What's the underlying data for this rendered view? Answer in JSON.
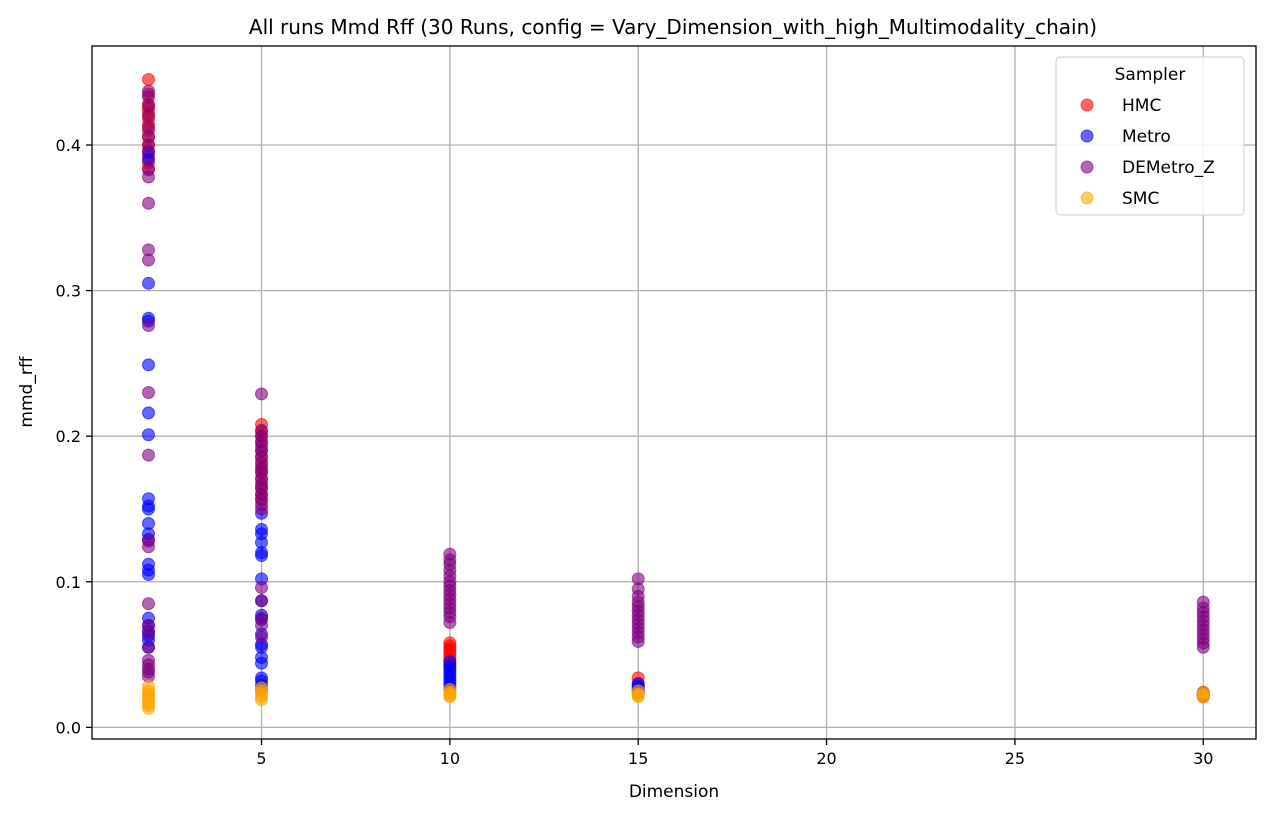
{
  "chart_data": {
    "type": "scatter",
    "title": "All runs Mmd Rff (30 Runs, config = Vary_Dimension_with_high_Multimodality_chain)",
    "xlabel": "Dimension",
    "ylabel": "mmd_rff",
    "xlim": [
      0.5,
      31.4
    ],
    "ylim": [
      -0.008,
      0.468
    ],
    "xticks": [
      5,
      10,
      15,
      20,
      25,
      30
    ],
    "yticks": [
      0.0,
      0.1,
      0.2,
      0.3,
      0.4
    ],
    "xtick_labels": [
      "5",
      "10",
      "15",
      "20",
      "25",
      "30"
    ],
    "ytick_labels": [
      "0.0",
      "0.1",
      "0.2",
      "0.3",
      "0.4"
    ],
    "grid": true,
    "legend": {
      "title": "Sampler",
      "position": "top-right"
    },
    "series": [
      {
        "name": "HMC",
        "color": "#ff0000",
        "points": [
          [
            2,
            0.445
          ],
          [
            2,
            0.435
          ],
          [
            2,
            0.428
          ],
          [
            2,
            0.425
          ],
          [
            2,
            0.422
          ],
          [
            2,
            0.418
          ],
          [
            2,
            0.414
          ],
          [
            2,
            0.41
          ],
          [
            2,
            0.405
          ],
          [
            2,
            0.4
          ],
          [
            2,
            0.396
          ],
          [
            2,
            0.392
          ],
          [
            2,
            0.388
          ],
          [
            2,
            0.384
          ],
          [
            5,
            0.208
          ],
          [
            5,
            0.203
          ],
          [
            5,
            0.2
          ],
          [
            5,
            0.196
          ],
          [
            5,
            0.19
          ],
          [
            5,
            0.185
          ],
          [
            5,
            0.18
          ],
          [
            5,
            0.176
          ],
          [
            5,
            0.17
          ],
          [
            5,
            0.165
          ],
          [
            5,
            0.16
          ],
          [
            5,
            0.156
          ],
          [
            10,
            0.058
          ],
          [
            10,
            0.056
          ],
          [
            10,
            0.054
          ],
          [
            10,
            0.052
          ],
          [
            10,
            0.05
          ],
          [
            10,
            0.048
          ],
          [
            10,
            0.046
          ],
          [
            10,
            0.044
          ],
          [
            10,
            0.042
          ],
          [
            15,
            0.034
          ],
          [
            15,
            0.03
          ],
          [
            15,
            0.028
          ],
          [
            15,
            0.026
          ],
          [
            30,
            0.024
          ],
          [
            30,
            0.023
          ],
          [
            30,
            0.022
          ],
          [
            30,
            0.021
          ]
        ]
      },
      {
        "name": "Metro",
        "color": "#0000ff",
        "points": [
          [
            2,
            0.395
          ],
          [
            2,
            0.39
          ],
          [
            2,
            0.305
          ],
          [
            2,
            0.281
          ],
          [
            2,
            0.279
          ],
          [
            2,
            0.249
          ],
          [
            2,
            0.216
          ],
          [
            2,
            0.201
          ],
          [
            2,
            0.157
          ],
          [
            2,
            0.152
          ],
          [
            2,
            0.15
          ],
          [
            2,
            0.14
          ],
          [
            2,
            0.133
          ],
          [
            2,
            0.129
          ],
          [
            2,
            0.112
          ],
          [
            2,
            0.108
          ],
          [
            2,
            0.105
          ],
          [
            2,
            0.075
          ],
          [
            2,
            0.07
          ],
          [
            2,
            0.066
          ],
          [
            2,
            0.063
          ],
          [
            2,
            0.06
          ],
          [
            2,
            0.055
          ],
          [
            5,
            0.147
          ],
          [
            5,
            0.136
          ],
          [
            5,
            0.133
          ],
          [
            5,
            0.127
          ],
          [
            5,
            0.12
          ],
          [
            5,
            0.118
          ],
          [
            5,
            0.102
          ],
          [
            5,
            0.087
          ],
          [
            5,
            0.077
          ],
          [
            5,
            0.074
          ],
          [
            5,
            0.064
          ],
          [
            5,
            0.057
          ],
          [
            5,
            0.055
          ],
          [
            5,
            0.048
          ],
          [
            5,
            0.044
          ],
          [
            5,
            0.034
          ],
          [
            5,
            0.032
          ],
          [
            5,
            0.029
          ],
          [
            5,
            0.026
          ],
          [
            10,
            0.045
          ],
          [
            10,
            0.042
          ],
          [
            10,
            0.04
          ],
          [
            10,
            0.038
          ],
          [
            10,
            0.036
          ],
          [
            10,
            0.034
          ],
          [
            10,
            0.032
          ],
          [
            10,
            0.03
          ],
          [
            10,
            0.028
          ],
          [
            10,
            0.026
          ],
          [
            15,
            0.03
          ],
          [
            15,
            0.028
          ],
          [
            15,
            0.026
          ],
          [
            15,
            0.025
          ],
          [
            15,
            0.024
          ],
          [
            30,
            0.024
          ],
          [
            30,
            0.023
          ],
          [
            30,
            0.022
          ]
        ]
      },
      {
        "name": "DEMetro_Z",
        "color": "#800080",
        "points": [
          [
            2,
            0.437
          ],
          [
            2,
            0.433
          ],
          [
            2,
            0.427
          ],
          [
            2,
            0.42
          ],
          [
            2,
            0.412
          ],
          [
            2,
            0.406
          ],
          [
            2,
            0.4
          ],
          [
            2,
            0.383
          ],
          [
            2,
            0.378
          ],
          [
            2,
            0.36
          ],
          [
            2,
            0.328
          ],
          [
            2,
            0.321
          ],
          [
            2,
            0.276
          ],
          [
            2,
            0.23
          ],
          [
            2,
            0.187
          ],
          [
            2,
            0.128
          ],
          [
            2,
            0.124
          ],
          [
            2,
            0.085
          ],
          [
            2,
            0.07
          ],
          [
            2,
            0.065
          ],
          [
            2,
            0.055
          ],
          [
            2,
            0.046
          ],
          [
            2,
            0.043
          ],
          [
            2,
            0.04
          ],
          [
            2,
            0.038
          ],
          [
            2,
            0.035
          ],
          [
            5,
            0.229
          ],
          [
            5,
            0.204
          ],
          [
            5,
            0.2
          ],
          [
            5,
            0.196
          ],
          [
            5,
            0.193
          ],
          [
            5,
            0.19
          ],
          [
            5,
            0.186
          ],
          [
            5,
            0.182
          ],
          [
            5,
            0.178
          ],
          [
            5,
            0.175
          ],
          [
            5,
            0.171
          ],
          [
            5,
            0.167
          ],
          [
            5,
            0.164
          ],
          [
            5,
            0.16
          ],
          [
            5,
            0.157
          ],
          [
            5,
            0.153
          ],
          [
            5,
            0.15
          ],
          [
            5,
            0.096
          ],
          [
            5,
            0.087
          ],
          [
            5,
            0.075
          ],
          [
            5,
            0.07
          ],
          [
            5,
            0.062
          ],
          [
            10,
            0.119
          ],
          [
            10,
            0.115
          ],
          [
            10,
            0.112
          ],
          [
            10,
            0.108
          ],
          [
            10,
            0.104
          ],
          [
            10,
            0.1
          ],
          [
            10,
            0.097
          ],
          [
            10,
            0.094
          ],
          [
            10,
            0.091
          ],
          [
            10,
            0.088
          ],
          [
            10,
            0.085
          ],
          [
            10,
            0.082
          ],
          [
            10,
            0.079
          ],
          [
            10,
            0.076
          ],
          [
            10,
            0.072
          ],
          [
            15,
            0.102
          ],
          [
            15,
            0.095
          ],
          [
            15,
            0.09
          ],
          [
            15,
            0.086
          ],
          [
            15,
            0.083
          ],
          [
            15,
            0.08
          ],
          [
            15,
            0.077
          ],
          [
            15,
            0.074
          ],
          [
            15,
            0.071
          ],
          [
            15,
            0.068
          ],
          [
            15,
            0.065
          ],
          [
            15,
            0.062
          ],
          [
            15,
            0.059
          ],
          [
            30,
            0.086
          ],
          [
            30,
            0.082
          ],
          [
            30,
            0.079
          ],
          [
            30,
            0.076
          ],
          [
            30,
            0.073
          ],
          [
            30,
            0.07
          ],
          [
            30,
            0.067
          ],
          [
            30,
            0.064
          ],
          [
            30,
            0.061
          ],
          [
            30,
            0.058
          ],
          [
            30,
            0.055
          ]
        ]
      },
      {
        "name": "SMC",
        "color": "#ffa500",
        "points": [
          [
            2,
            0.028
          ],
          [
            2,
            0.025
          ],
          [
            2,
            0.023
          ],
          [
            2,
            0.021
          ],
          [
            2,
            0.019
          ],
          [
            2,
            0.017
          ],
          [
            2,
            0.015
          ],
          [
            2,
            0.013
          ],
          [
            5,
            0.027
          ],
          [
            5,
            0.025
          ],
          [
            5,
            0.023
          ],
          [
            5,
            0.021
          ],
          [
            5,
            0.019
          ],
          [
            10,
            0.026
          ],
          [
            10,
            0.024
          ],
          [
            10,
            0.023
          ],
          [
            10,
            0.022
          ],
          [
            10,
            0.021
          ],
          [
            15,
            0.025
          ],
          [
            15,
            0.023
          ],
          [
            15,
            0.022
          ],
          [
            15,
            0.021
          ],
          [
            30,
            0.024
          ],
          [
            30,
            0.023
          ],
          [
            30,
            0.022
          ],
          [
            30,
            0.021
          ]
        ]
      }
    ]
  }
}
